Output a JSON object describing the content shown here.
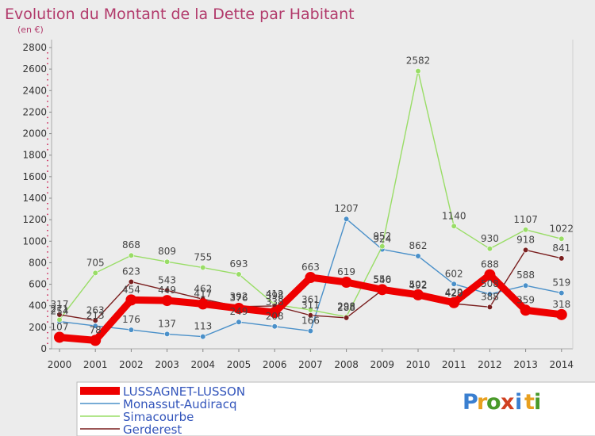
{
  "chart_data": {
    "type": "line",
    "title": "Evolution du Montant de la Dette par Habitant",
    "subtitle": "(en €)",
    "categories": [
      "2000",
      "2001",
      "2002",
      "2003",
      "2004",
      "2005",
      "2006",
      "2007",
      "2008",
      "2009",
      "2010",
      "2011",
      "2012",
      "2013",
      "2014"
    ],
    "y_ticks": [
      0,
      200,
      400,
      600,
      800,
      1000,
      1200,
      1400,
      1600,
      1800,
      2000,
      2200,
      2400,
      2600,
      2800
    ],
    "ylim": [
      0,
      2800
    ],
    "grid": false,
    "legend_position": "bottom-left",
    "series": [
      {
        "name": "LUSSAGNET-LUSSON",
        "color": "#ee0000",
        "values": [
          107,
          78,
          454,
          449,
          417,
          376,
          338,
          663,
          619,
          550,
          502,
          429,
          688,
          359,
          318
        ]
      },
      {
        "name": "Monassut-Audiracq",
        "color": "#4a90c9",
        "values": [
          254,
          213,
          176,
          137,
          113,
          249,
          208,
          166,
          1207,
          924,
          862,
          602,
          508,
          588,
          519
        ]
      },
      {
        "name": "Simacourbe",
        "color": "#99dd66",
        "values": [
          271,
          705,
          868,
          809,
          755,
          693,
          412,
          361,
          298,
          952,
          2582,
          1140,
          930,
          1107,
          1022
        ]
      },
      {
        "name": "Gerderest",
        "color": "#7a1f1f",
        "values": [
          317,
          263,
          623,
          543,
          462,
          392,
          398,
          311,
          288,
          546,
          492,
          420,
          388,
          918,
          841
        ]
      }
    ]
  },
  "logo": {
    "letters": [
      "P",
      "r",
      "o",
      "x",
      "i",
      "t",
      "i"
    ],
    "colors": [
      "#3a7fd0",
      "#e8a020",
      "#4a9a2a",
      "#d04020",
      "#3a7fd0",
      "#e8a020",
      "#4a9a2a"
    ]
  }
}
